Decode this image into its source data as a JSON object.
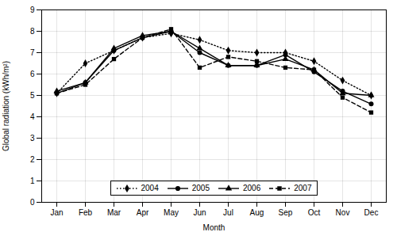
{
  "chart_data": {
    "type": "line",
    "xlabel": "Month",
    "ylabel": "Global radiation (kWh/m²)",
    "categories": [
      "Jan",
      "Feb",
      "Mar",
      "Apr",
      "May",
      "Jun",
      "Jul",
      "Aug",
      "Sep",
      "Oct",
      "Nov",
      "Dec"
    ],
    "series": [
      {
        "name": "2004",
        "color": "#000000",
        "marker": "diamond",
        "line_style": "dotted",
        "values": [
          5.1,
          6.5,
          7.1,
          7.7,
          7.9,
          7.6,
          7.1,
          7.0,
          7.0,
          6.6,
          5.7,
          5.0
        ]
      },
      {
        "name": "2005",
        "color": "#000000",
        "marker": "circle",
        "line_style": "solid",
        "values": [
          5.1,
          5.6,
          7.1,
          7.7,
          8.0,
          7.0,
          6.4,
          6.4,
          6.9,
          6.1,
          5.2,
          4.6
        ]
      },
      {
        "name": "2006",
        "color": "#000000",
        "marker": "triangle",
        "line_style": "solid",
        "values": [
          5.2,
          5.6,
          7.2,
          7.8,
          8.0,
          7.2,
          6.4,
          6.4,
          6.7,
          6.2,
          5.1,
          5.0
        ]
      },
      {
        "name": "2007",
        "color": "#000000",
        "marker": "square",
        "line_style": "dashed",
        "values": [
          5.1,
          5.5,
          6.7,
          7.7,
          8.1,
          6.3,
          6.8,
          6.6,
          6.3,
          6.2,
          4.9,
          4.2
        ]
      }
    ],
    "ylim": [
      0,
      9
    ],
    "yticks": [
      0,
      1,
      2,
      3,
      4,
      5,
      6,
      7,
      8,
      9
    ],
    "grid": true,
    "legend": "bottom"
  }
}
